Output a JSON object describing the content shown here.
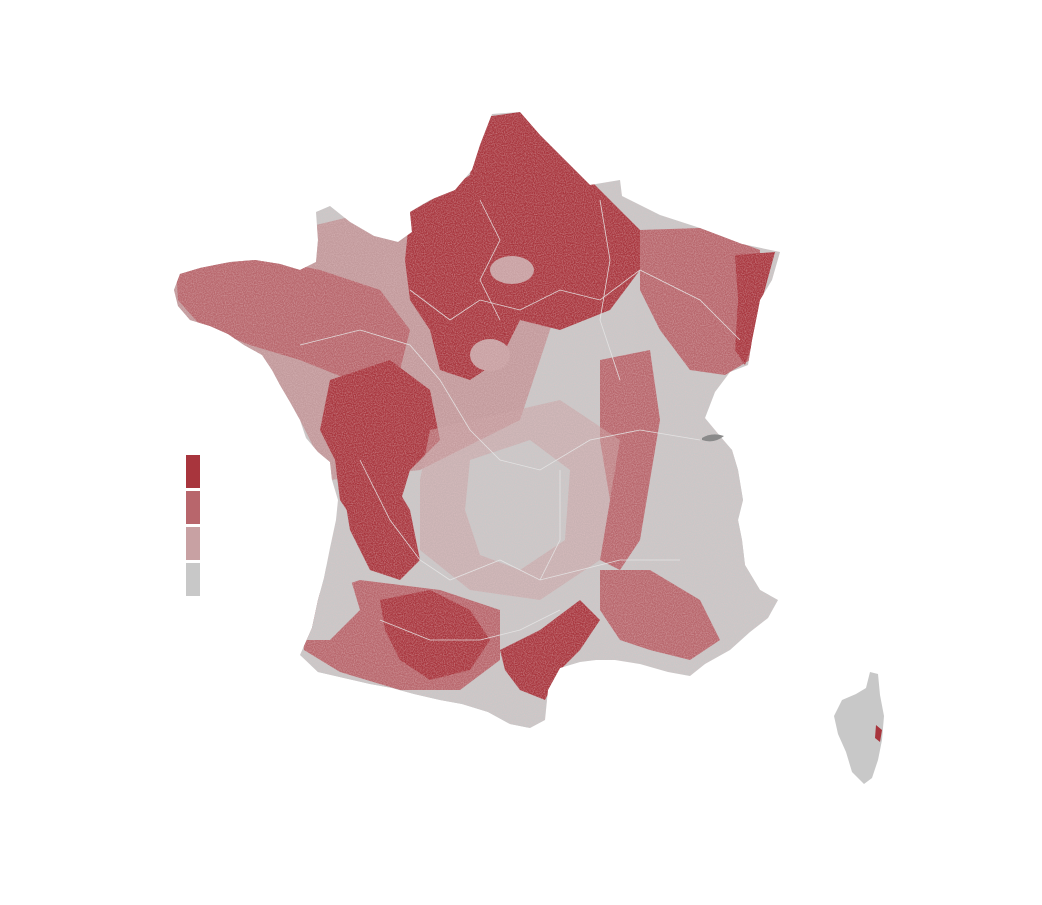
{
  "map": {
    "region": "France",
    "has_title": false,
    "colors": {
      "background": "#ffffff",
      "land_no_data": "#c8c8c8",
      "boundary_lines": "#e6e6e6",
      "water": "#8a8a8a"
    }
  },
  "legend": {
    "labels_visible": false,
    "classes": [
      {
        "level": 4,
        "color": "#a8353d"
      },
      {
        "level": 3,
        "color": "#b8666c"
      },
      {
        "level": 2,
        "color": "#c8a1a3"
      },
      {
        "level": 1,
        "color": "#c8c8c8"
      }
    ]
  }
}
